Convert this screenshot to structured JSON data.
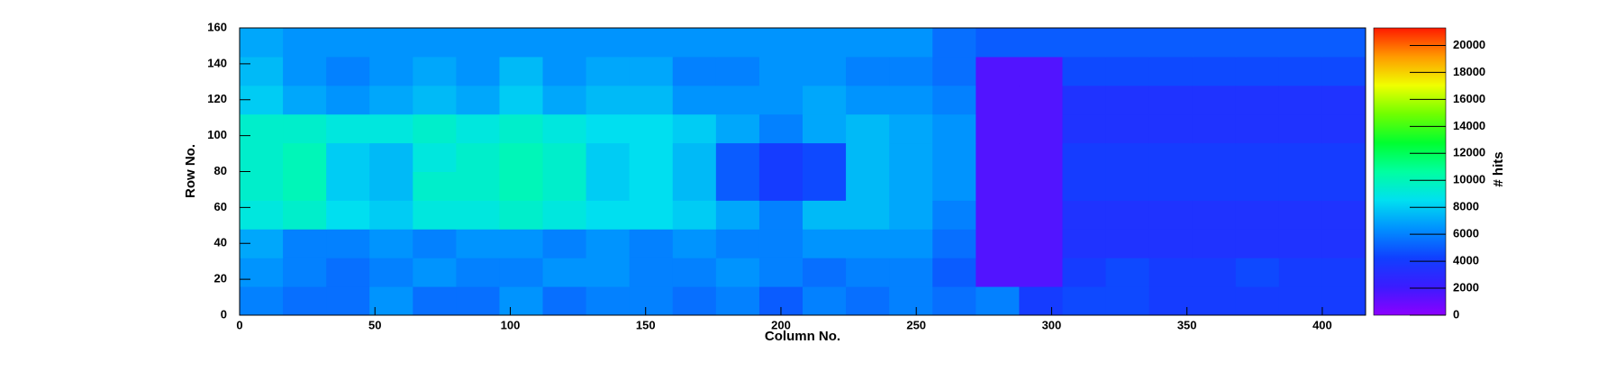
{
  "chart_data": {
    "type": "heatmap",
    "x_label": "Column No.",
    "y_label": "Row No.",
    "z_label": "# hits",
    "xlim": [
      0,
      416
    ],
    "ylim": [
      0,
      160
    ],
    "zlim": [
      0,
      21300
    ],
    "xticks": [
      0,
      50,
      100,
      150,
      200,
      250,
      300,
      350,
      400
    ],
    "yticks": [
      0,
      20,
      40,
      60,
      80,
      100,
      120,
      140,
      160
    ],
    "zticks": [
      0,
      2000,
      4000,
      6000,
      8000,
      10000,
      12000,
      14000,
      16000,
      18000,
      20000
    ],
    "colormap": [
      "#8c00ff",
      "#3a1cff",
      "#1040ff",
      "#0090ff",
      "#00e0f0",
      "#00ffa0",
      "#00ff30",
      "#70ff00",
      "#f0ff00",
      "#ff9a00",
      "#ff1a00"
    ],
    "x_bins": [
      0,
      16,
      32,
      48,
      64,
      80,
      96,
      112,
      128,
      144,
      160,
      176,
      192,
      208,
      224,
      240,
      256,
      272,
      288,
      304,
      320,
      336,
      352,
      368,
      384,
      400,
      416
    ],
    "y_bins": [
      0,
      16,
      32,
      48,
      64,
      80,
      96,
      112,
      128,
      144,
      160
    ],
    "z": [
      [
        6000,
        5500,
        5500,
        6500,
        5500,
        5500,
        6500,
        5500,
        6000,
        6000,
        5500,
        6000,
        5000,
        6000,
        5500,
        6000,
        5500,
        6000,
        4000,
        4500,
        4500,
        4000,
        4000,
        4000,
        4000,
        4000
      ],
      [
        6500,
        6000,
        5500,
        6000,
        6500,
        6000,
        6000,
        6500,
        6500,
        6000,
        6000,
        6500,
        6000,
        5500,
        6000,
        6000,
        5000,
        1500,
        1500,
        4000,
        4500,
        4000,
        4000,
        4500,
        4000,
        4000
      ],
      [
        7000,
        6000,
        6000,
        6500,
        6000,
        6500,
        6500,
        6000,
        6500,
        6000,
        6500,
        6000,
        6000,
        6500,
        6500,
        6500,
        5500,
        1500,
        1500,
        3500,
        3500,
        3500,
        3500,
        3500,
        3500,
        3500
      ],
      [
        9000,
        9500,
        8500,
        8000,
        9000,
        9000,
        9500,
        9000,
        8500,
        8500,
        8000,
        7000,
        6000,
        7500,
        7500,
        7000,
        6000,
        1500,
        1500,
        3500,
        3500,
        3500,
        3500,
        3500,
        3500,
        3500
      ],
      [
        9500,
        10000,
        8000,
        7500,
        9500,
        9500,
        10000,
        9500,
        8000,
        8500,
        7500,
        5000,
        4000,
        4500,
        7500,
        7000,
        6500,
        1500,
        1500,
        4000,
        4000,
        4000,
        4000,
        4000,
        4000,
        4000
      ],
      [
        9500,
        10000,
        8000,
        7500,
        9000,
        9500,
        10000,
        9500,
        8000,
        8500,
        7500,
        5000,
        4000,
        4500,
        7500,
        7000,
        6500,
        1500,
        1500,
        4000,
        4000,
        4000,
        4000,
        4000,
        4000,
        4000
      ],
      [
        9500,
        9500,
        9000,
        9000,
        9500,
        9000,
        9500,
        9000,
        8500,
        8500,
        8000,
        7000,
        6000,
        7000,
        7500,
        7000,
        6500,
        1500,
        1500,
        3500,
        3500,
        3500,
        3500,
        3500,
        3500,
        3500
      ],
      [
        8000,
        7000,
        6500,
        7000,
        7500,
        7000,
        8000,
        7000,
        7500,
        7500,
        6500,
        6500,
        6500,
        7000,
        6500,
        6500,
        6000,
        1500,
        1500,
        3500,
        3500,
        3500,
        3500,
        3500,
        3500,
        3500
      ],
      [
        7500,
        6500,
        6000,
        6500,
        7000,
        6500,
        7500,
        6500,
        7000,
        7000,
        6000,
        6000,
        6500,
        6500,
        6000,
        6000,
        5500,
        1500,
        1500,
        4500,
        4500,
        4500,
        4500,
        4500,
        4500,
        4500
      ],
      [
        7000,
        6500,
        6500,
        6500,
        6500,
        6500,
        6500,
        6500,
        6500,
        6500,
        6500,
        6500,
        6500,
        6500,
        6500,
        6500,
        5500,
        5000,
        5000,
        5000,
        5000,
        5000,
        5000,
        5000,
        5000,
        5000
      ]
    ]
  }
}
